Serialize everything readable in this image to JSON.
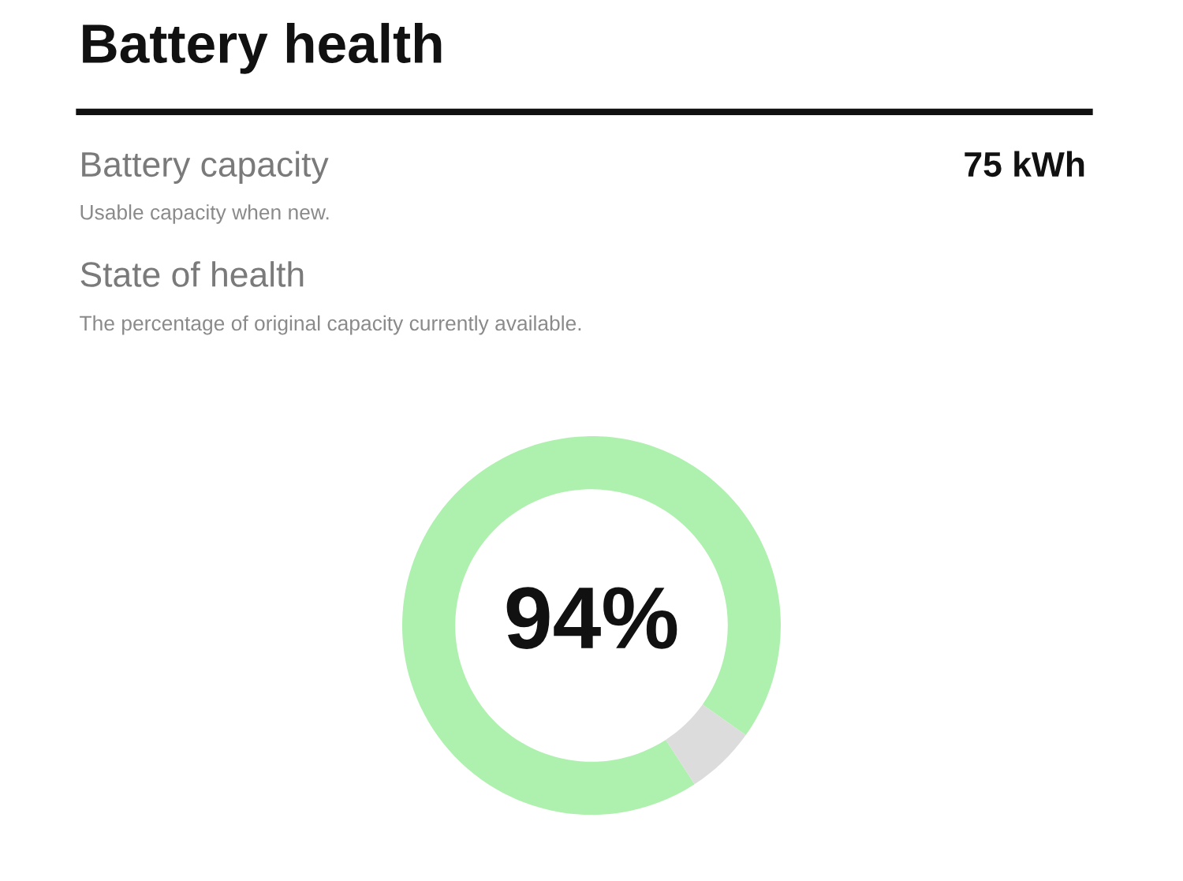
{
  "chart_data": {
    "type": "donut",
    "title": "Battery health",
    "annotations": [
      "Battery capacity",
      "Usable capacity when new.",
      "75 kWh",
      "State of health",
      "The percentage of original capacity currently available."
    ],
    "categories": [
      null,
      null
    ],
    "values": [
      94,
      6
    ],
    "colors": [
      "#aef0ae",
      "#dcdcdc"
    ],
    "value_labels": [
      "94%",
      null
    ]
  }
}
